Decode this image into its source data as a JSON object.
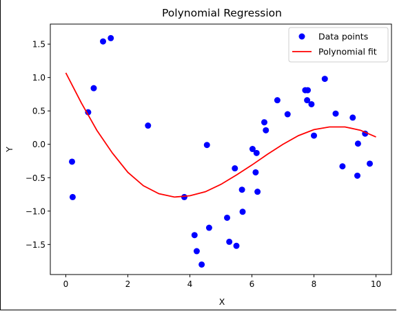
{
  "chart_data": {
    "type": "scatter",
    "title": "Polynomial Regression",
    "xlabel": "X",
    "ylabel": "Y",
    "xlim": [
      -0.5,
      10.5
    ],
    "ylim": [
      -1.95,
      1.8
    ],
    "xticks": [
      0,
      2,
      4,
      6,
      8,
      10
    ],
    "xtick_labels": [
      "0",
      "2",
      "4",
      "6",
      "8",
      "10"
    ],
    "yticks": [
      -1.5,
      -1.0,
      -0.5,
      0.0,
      0.5,
      1.0,
      1.5
    ],
    "ytick_labels": [
      "−1.5",
      "−1.0",
      "−0.5",
      "0.0",
      "0.5",
      "1.0",
      "1.5"
    ],
    "grid": false,
    "legend_position": "top-right",
    "series": [
      {
        "name": "Data points",
        "kind": "scatter",
        "color": "#0000ff",
        "points": [
          [
            0.2,
            -0.26
          ],
          [
            0.22,
            -0.79
          ],
          [
            0.72,
            0.48
          ],
          [
            0.9,
            0.84
          ],
          [
            1.2,
            1.54
          ],
          [
            1.45,
            1.59
          ],
          [
            2.65,
            0.28
          ],
          [
            3.82,
            -0.79
          ],
          [
            4.15,
            -1.36
          ],
          [
            4.22,
            -1.6
          ],
          [
            4.38,
            -1.8
          ],
          [
            4.55,
            -0.01
          ],
          [
            4.62,
            -1.25
          ],
          [
            5.2,
            -1.1
          ],
          [
            5.27,
            -1.46
          ],
          [
            5.45,
            -0.36
          ],
          [
            5.5,
            -1.52
          ],
          [
            5.68,
            -0.68
          ],
          [
            5.7,
            -1.01
          ],
          [
            6.02,
            -0.07
          ],
          [
            6.12,
            -0.42
          ],
          [
            6.15,
            -0.13
          ],
          [
            6.18,
            -0.71
          ],
          [
            6.4,
            0.33
          ],
          [
            6.45,
            0.21
          ],
          [
            6.82,
            0.66
          ],
          [
            7.15,
            0.45
          ],
          [
            7.72,
            0.81
          ],
          [
            7.78,
            0.66
          ],
          [
            7.8,
            0.81
          ],
          [
            7.92,
            0.6
          ],
          [
            8.0,
            0.13
          ],
          [
            8.35,
            0.98
          ],
          [
            8.7,
            0.46
          ],
          [
            8.92,
            -0.33
          ],
          [
            9.25,
            0.4
          ],
          [
            9.4,
            -0.47
          ],
          [
            9.42,
            0.01
          ],
          [
            9.65,
            0.16
          ],
          [
            9.8,
            -0.29
          ]
        ]
      },
      {
        "name": "Polynomial fit",
        "kind": "line",
        "color": "#ff0000",
        "points": [
          [
            0.0,
            1.07
          ],
          [
            0.5,
            0.62
          ],
          [
            1.0,
            0.21
          ],
          [
            1.5,
            -0.13
          ],
          [
            2.0,
            -0.42
          ],
          [
            2.5,
            -0.62
          ],
          [
            3.0,
            -0.74
          ],
          [
            3.5,
            -0.79
          ],
          [
            4.0,
            -0.77
          ],
          [
            4.5,
            -0.71
          ],
          [
            5.0,
            -0.6
          ],
          [
            5.5,
            -0.46
          ],
          [
            6.0,
            -0.31
          ],
          [
            6.5,
            -0.15
          ],
          [
            7.0,
            0.0
          ],
          [
            7.5,
            0.13
          ],
          [
            8.0,
            0.22
          ],
          [
            8.5,
            0.26
          ],
          [
            9.0,
            0.26
          ],
          [
            9.5,
            0.21
          ],
          [
            10.0,
            0.11
          ]
        ]
      }
    ]
  }
}
